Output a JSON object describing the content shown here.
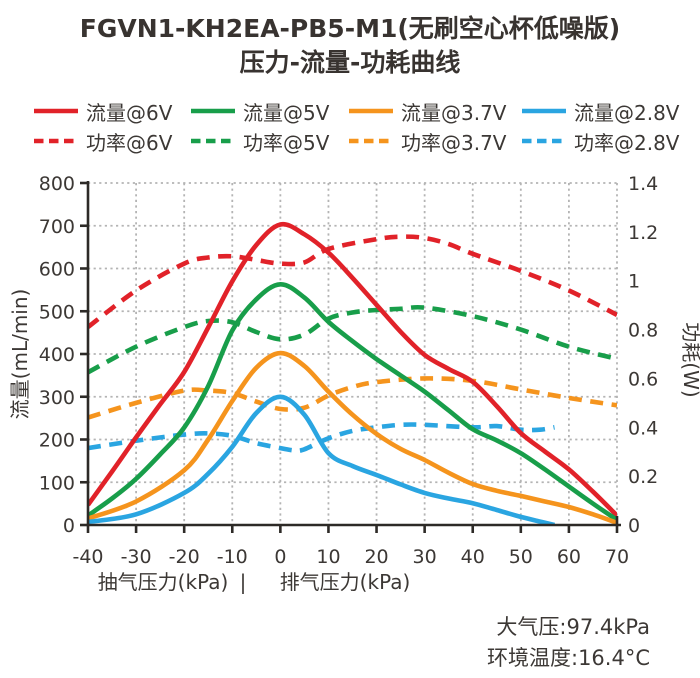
{
  "title": {
    "line1": "FGVN1-KH2EA-PB5-M1(无刷空心杯低噪版)",
    "line2": "压力-流量-功耗曲线"
  },
  "colors": {
    "red": "#e12229",
    "green": "#189e4a",
    "orange": "#f5941d",
    "blue": "#2aa5e1",
    "axis": "#2d2a27",
    "grid": "#b4b4b4",
    "text": "#3c3835"
  },
  "legend": {
    "rows": [
      [
        {
          "key": "flow_6v",
          "label": "流量@6V",
          "color": "#e12229",
          "dash": false
        },
        {
          "key": "flow_5v",
          "label": "流量@5V",
          "color": "#189e4a",
          "dash": false
        },
        {
          "key": "flow_3_7v",
          "label": "流量@3.7V",
          "color": "#f5941d",
          "dash": false
        },
        {
          "key": "flow_2_8v",
          "label": "流量@2.8V",
          "color": "#2aa5e1",
          "dash": false
        }
      ],
      [
        {
          "key": "power_6v",
          "label": "功率@6V",
          "color": "#e12229",
          "dash": true
        },
        {
          "key": "power_5v",
          "label": "功率@5V",
          "color": "#189e4a",
          "dash": true
        },
        {
          "key": "power_3_7v",
          "label": "功率@3.7V",
          "color": "#f5941d",
          "dash": true
        },
        {
          "key": "power_2_8v",
          "label": "功率@2.8V",
          "color": "#2aa5e1",
          "dash": true
        }
      ]
    ]
  },
  "chart_data": {
    "type": "line",
    "title": "FGVN1-KH2EA-PB5-M1(无刷空心杯低噪版) 压力-流量-功耗曲线",
    "grid": true,
    "x_axis": {
      "range": [
        -40,
        70
      ],
      "ticks": [
        -40,
        -30,
        -20,
        -10,
        0,
        10,
        20,
        30,
        40,
        50,
        60,
        70
      ],
      "tick_labels": [
        "-40",
        "-30",
        "-20",
        "-10",
        "0",
        "10",
        "20",
        "30",
        "40",
        "50",
        "60",
        "70"
      ],
      "label_left": "抽气压力(kPa)",
      "separator": "|",
      "label_right": "排气压力(kPa)"
    },
    "y_axis_left": {
      "label": "流量(mL/min)",
      "range": [
        0,
        800
      ],
      "ticks": [
        0,
        100,
        200,
        300,
        400,
        500,
        600,
        700,
        800
      ],
      "tick_labels": [
        "0",
        "100",
        "200",
        "300",
        "400",
        "500",
        "600",
        "700",
        "800"
      ]
    },
    "y_axis_right": {
      "label": "功耗(W)",
      "range": [
        0,
        1.4
      ],
      "ticks": [
        0,
        0.2,
        0.4,
        0.6,
        0.8,
        1,
        1.2,
        1.4
      ],
      "tick_labels": [
        "0",
        "0.2",
        "0.4",
        "0.6",
        "0.8",
        "1",
        "1.2",
        "1.4"
      ]
    },
    "series": [
      {
        "key": "flow_6v",
        "name": "流量@6V",
        "axis": "flow",
        "color": "#e12229",
        "dash": false,
        "points": [
          [
            -40,
            47
          ],
          [
            -35,
            125
          ],
          [
            -30,
            205
          ],
          [
            -25,
            282
          ],
          [
            -20,
            358
          ],
          [
            -15,
            462
          ],
          [
            -10,
            570
          ],
          [
            -5,
            655
          ],
          [
            0,
            703
          ],
          [
            5,
            680
          ],
          [
            10,
            637
          ],
          [
            15,
            578
          ],
          [
            20,
            515
          ],
          [
            25,
            452
          ],
          [
            30,
            398
          ],
          [
            35,
            365
          ],
          [
            40,
            335
          ],
          [
            45,
            278
          ],
          [
            50,
            215
          ],
          [
            55,
            172
          ],
          [
            60,
            130
          ],
          [
            65,
            78
          ],
          [
            70,
            22
          ]
        ]
      },
      {
        "key": "flow_5v",
        "name": "流量@5V",
        "axis": "flow",
        "color": "#189e4a",
        "dash": false,
        "points": [
          [
            -40,
            22
          ],
          [
            -35,
            62
          ],
          [
            -30,
            108
          ],
          [
            -25,
            165
          ],
          [
            -20,
            228
          ],
          [
            -15,
            325
          ],
          [
            -10,
            455
          ],
          [
            -5,
            528
          ],
          [
            0,
            563
          ],
          [
            5,
            532
          ],
          [
            10,
            475
          ],
          [
            15,
            430
          ],
          [
            20,
            388
          ],
          [
            25,
            350
          ],
          [
            30,
            312
          ],
          [
            35,
            268
          ],
          [
            40,
            224
          ],
          [
            45,
            198
          ],
          [
            50,
            168
          ],
          [
            55,
            130
          ],
          [
            60,
            90
          ],
          [
            65,
            50
          ],
          [
            70,
            12
          ]
        ]
      },
      {
        "key": "flow_3_7v",
        "name": "流量@3.7V",
        "axis": "flow",
        "color": "#f5941d",
        "dash": false,
        "points": [
          [
            -40,
            15
          ],
          [
            -30,
            55
          ],
          [
            -20,
            128
          ],
          [
            -15,
            200
          ],
          [
            -10,
            290
          ],
          [
            -5,
            368
          ],
          [
            0,
            402
          ],
          [
            5,
            372
          ],
          [
            10,
            312
          ],
          [
            15,
            258
          ],
          [
            20,
            213
          ],
          [
            25,
            178
          ],
          [
            30,
            152
          ],
          [
            35,
            122
          ],
          [
            40,
            96
          ],
          [
            45,
            80
          ],
          [
            50,
            68
          ],
          [
            55,
            55
          ],
          [
            60,
            42
          ],
          [
            65,
            25
          ],
          [
            70,
            5
          ]
        ]
      },
      {
        "key": "flow_2_8v",
        "name": "流量@2.8V",
        "axis": "flow",
        "color": "#2aa5e1",
        "dash": false,
        "points": [
          [
            -40,
            7
          ],
          [
            -30,
            25
          ],
          [
            -20,
            75
          ],
          [
            -15,
            120
          ],
          [
            -10,
            183
          ],
          [
            -5,
            262
          ],
          [
            0,
            300
          ],
          [
            5,
            258
          ],
          [
            10,
            168
          ],
          [
            15,
            138
          ],
          [
            20,
            117
          ],
          [
            25,
            95
          ],
          [
            30,
            75
          ],
          [
            35,
            62
          ],
          [
            40,
            51
          ],
          [
            45,
            35
          ],
          [
            50,
            19
          ],
          [
            54,
            8
          ],
          [
            57,
            0
          ]
        ]
      },
      {
        "key": "power_6v",
        "name": "功率@6V",
        "axis": "power",
        "color": "#e12229",
        "dash": true,
        "points": [
          [
            -40,
            0.81
          ],
          [
            -30,
            0.96
          ],
          [
            -20,
            1.07
          ],
          [
            -15,
            1.095
          ],
          [
            -10,
            1.1
          ],
          [
            -5,
            1.085
          ],
          [
            0,
            1.07
          ],
          [
            5,
            1.075
          ],
          [
            10,
            1.13
          ],
          [
            20,
            1.17
          ],
          [
            25,
            1.18
          ],
          [
            30,
            1.175
          ],
          [
            35,
            1.15
          ],
          [
            40,
            1.11
          ],
          [
            50,
            1.04
          ],
          [
            60,
            0.96
          ],
          [
            70,
            0.86
          ]
        ]
      },
      {
        "key": "power_5v",
        "name": "功率@5V",
        "axis": "power",
        "color": "#189e4a",
        "dash": true,
        "points": [
          [
            -40,
            0.625
          ],
          [
            -30,
            0.73
          ],
          [
            -20,
            0.81
          ],
          [
            -15,
            0.835
          ],
          [
            -10,
            0.83
          ],
          [
            -5,
            0.79
          ],
          [
            0,
            0.76
          ],
          [
            5,
            0.78
          ],
          [
            10,
            0.845
          ],
          [
            15,
            0.87
          ],
          [
            20,
            0.88
          ],
          [
            25,
            0.885
          ],
          [
            30,
            0.89
          ],
          [
            40,
            0.855
          ],
          [
            50,
            0.8
          ],
          [
            60,
            0.73
          ],
          [
            70,
            0.68
          ]
        ]
      },
      {
        "key": "power_3_7v",
        "name": "功率@3.7V",
        "axis": "power",
        "color": "#f5941d",
        "dash": true,
        "points": [
          [
            -40,
            0.44
          ],
          [
            -30,
            0.5
          ],
          [
            -20,
            0.55
          ],
          [
            -15,
            0.55
          ],
          [
            -10,
            0.54
          ],
          [
            -5,
            0.505
          ],
          [
            0,
            0.475
          ],
          [
            5,
            0.48
          ],
          [
            10,
            0.53
          ],
          [
            15,
            0.565
          ],
          [
            20,
            0.585
          ],
          [
            30,
            0.6
          ],
          [
            40,
            0.59
          ],
          [
            50,
            0.555
          ],
          [
            60,
            0.52
          ],
          [
            70,
            0.49
          ]
        ]
      },
      {
        "key": "power_2_8v",
        "name": "功率@2.8V",
        "axis": "power",
        "color": "#2aa5e1",
        "dash": true,
        "points": [
          [
            -40,
            0.315
          ],
          [
            -30,
            0.345
          ],
          [
            -20,
            0.37
          ],
          [
            -15,
            0.375
          ],
          [
            -10,
            0.365
          ],
          [
            -5,
            0.335
          ],
          [
            0,
            0.315
          ],
          [
            3,
            0.305
          ],
          [
            5,
            0.31
          ],
          [
            10,
            0.355
          ],
          [
            15,
            0.385
          ],
          [
            20,
            0.4
          ],
          [
            25,
            0.41
          ],
          [
            30,
            0.41
          ],
          [
            40,
            0.4
          ],
          [
            45,
            0.405
          ],
          [
            50,
            0.39
          ],
          [
            54,
            0.39
          ],
          [
            57,
            0.4
          ]
        ]
      }
    ]
  },
  "footnote": {
    "line1": "大气压:97.4kPa",
    "line2": "环境温度:16.4°C"
  }
}
